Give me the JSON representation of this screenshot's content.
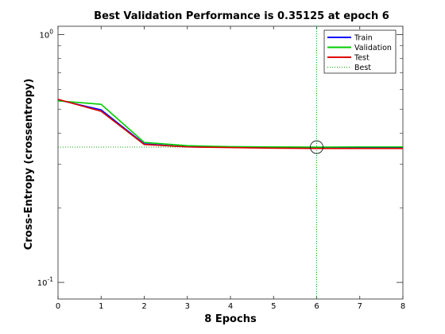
{
  "chart_data": {
    "type": "line",
    "title": "Best Validation Performance is 0.35125 at epoch 6",
    "xlabel": "8 Epochs",
    "ylabel": "Cross-Entropy  (crossentropy)",
    "xlim": [
      0,
      8
    ],
    "ylim": [
      0.0857,
      1.08
    ],
    "yscale": "log",
    "x_ticks": [
      "0",
      "1",
      "2",
      "3",
      "4",
      "5",
      "6",
      "7",
      "8"
    ],
    "y_ticks": [
      {
        "value": 1,
        "base": "10",
        "exp": "0"
      },
      {
        "value": 0.1,
        "base": "10",
        "exp": "-1"
      }
    ],
    "x": [
      0,
      1,
      2,
      3,
      4,
      5,
      6,
      7,
      8
    ],
    "series": [
      {
        "name": "Train",
        "color": "#0000ff",
        "values": [
          0.545,
          0.497,
          0.362,
          0.352,
          0.351,
          0.35,
          0.35,
          0.35,
          0.35
        ]
      },
      {
        "name": "Validation",
        "color": "#00cc00",
        "values": [
          0.54,
          0.523,
          0.367,
          0.356,
          0.353,
          0.352,
          0.35125,
          0.352,
          0.352
        ]
      },
      {
        "name": "Test",
        "color": "#e00000",
        "values": [
          0.548,
          0.49,
          0.36,
          0.352,
          0.35,
          0.348,
          0.347,
          0.347,
          0.347
        ]
      }
    ],
    "best": {
      "name": "Best",
      "color": "#00aa00",
      "epoch": 6,
      "value": 0.35125
    },
    "legend_position": "top-right",
    "grid": false
  }
}
